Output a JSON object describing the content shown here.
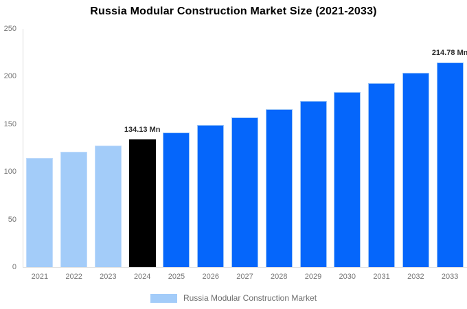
{
  "title": "Russia Modular Construction Market Size (2021-2033)",
  "legend": {
    "label": "Russia Modular Construction Market"
  },
  "colors": {
    "historical_bar": "#a3ccf9",
    "highlight_bar": "#000000",
    "forecast_bar": "#0566fb",
    "axis_text": "#757575",
    "legend_text": "#6e6e6e",
    "annotation_text": "#2b2b2b",
    "axis_line": "#dadada"
  },
  "chart_data": {
    "type": "bar",
    "title": "Russia Modular Construction Market Size (2021-2033)",
    "unit": "Mn",
    "categories": [
      "2021",
      "2022",
      "2023",
      "2024",
      "2025",
      "2026",
      "2027",
      "2028",
      "2029",
      "2030",
      "2031",
      "2032",
      "2033"
    ],
    "values": [
      114.6,
      120.8,
      127.3,
      134.13,
      141.3,
      148.9,
      156.9,
      165.4,
      174.2,
      183.6,
      193.4,
      203.8,
      214.78
    ],
    "bar_groups": [
      "historical",
      "historical",
      "historical",
      "highlight",
      "forecast",
      "forecast",
      "forecast",
      "forecast",
      "forecast",
      "forecast",
      "forecast",
      "forecast",
      "forecast"
    ],
    "annotations": [
      {
        "category": "2024",
        "label": "134.13 Mn"
      },
      {
        "category": "2033",
        "label": "214.78 Mn"
      }
    ],
    "xlabel": "",
    "ylabel": "",
    "ylim": [
      0,
      250
    ],
    "yticks": [
      0,
      50,
      100,
      150,
      200,
      250
    ],
    "grid": "off",
    "legend_entries": [
      "Russia Modular Construction Market"
    ],
    "legend_position": "bottom-center"
  }
}
